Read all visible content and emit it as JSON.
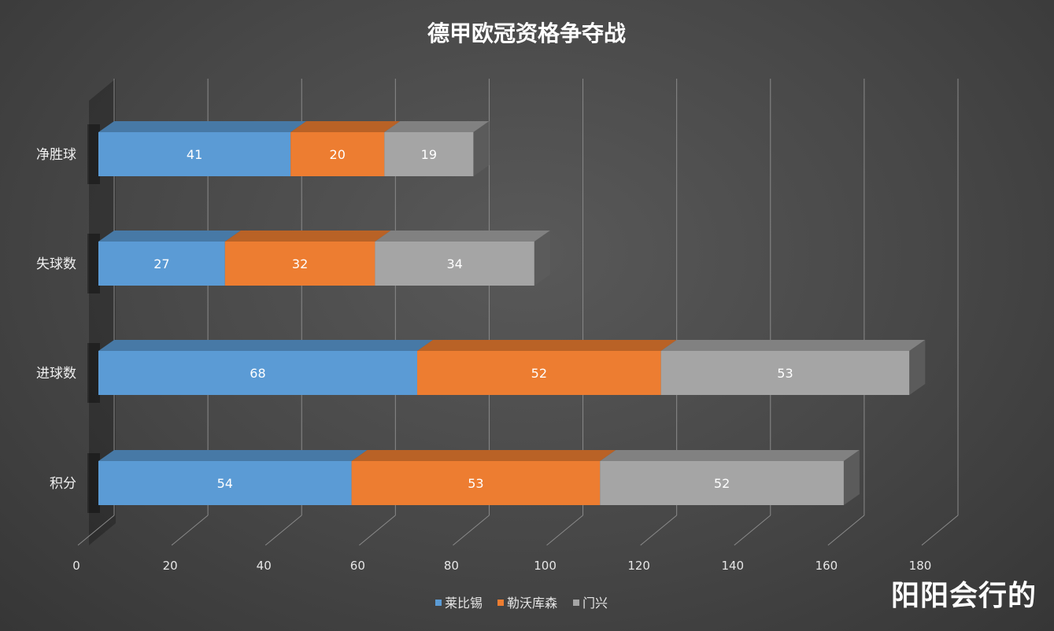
{
  "chart_data": {
    "type": "bar",
    "orientation": "horizontal",
    "stacked": true,
    "three_d": true,
    "title": "德甲欧冠资格争夺战",
    "categories": [
      "积分",
      "进球数",
      "失球数",
      "净胜球"
    ],
    "series": [
      {
        "name": "莱比锡",
        "values": [
          54,
          68,
          27,
          41
        ]
      },
      {
        "name": "勒沃库森",
        "values": [
          53,
          52,
          32,
          20
        ]
      },
      {
        "name": "门兴",
        "values": [
          52,
          53,
          34,
          19
        ]
      }
    ],
    "colors": {
      "莱比锡": "#5B9BD5",
      "勒沃库森": "#ED7D31",
      "门兴": "#A5A5A5"
    },
    "xlim": [
      0,
      180
    ],
    "xticks": [
      0,
      20,
      40,
      60,
      80,
      100,
      120,
      140,
      160,
      180
    ],
    "grid": true,
    "legend_position": "bottom",
    "data_labels": true
  },
  "watermark": "阳阳会行的"
}
